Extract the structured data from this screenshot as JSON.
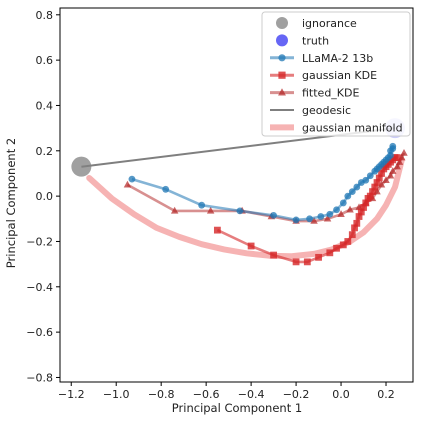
{
  "chart_data": {
    "type": "line",
    "xlabel": "Principal Component 1",
    "ylabel": "Principal Component 2",
    "xlim": [
      -1.25,
      0.32
    ],
    "ylim": [
      -0.82,
      0.83
    ],
    "xticks": [
      -1.2,
      -1.0,
      -0.8,
      -0.6,
      -0.4,
      -0.2,
      0.0,
      0.2
    ],
    "xtick_labels": [
      "−1.2",
      "−1.0",
      "−0.8",
      "−0.6",
      "−0.4",
      "−0.2",
      "0.0",
      "0.2"
    ],
    "yticks": [
      -0.8,
      -0.6,
      -0.4,
      -0.2,
      0.0,
      0.2,
      0.4,
      0.6,
      0.8
    ],
    "ytick_labels": [
      "−0.8",
      "−0.6",
      "−0.4",
      "−0.2",
      "0.0",
      "0.2",
      "0.4",
      "0.6",
      "0.8"
    ],
    "grid": false,
    "legend_placement": "top-right",
    "series": [
      {
        "name": "ignorance",
        "kind": "point",
        "color": "#808080",
        "opacity": 0.75,
        "x": [
          -1.155
        ],
        "y": [
          0.13
        ]
      },
      {
        "name": "truth",
        "kind": "point",
        "color": "#0000ee",
        "opacity": 0.2,
        "x": [
          0.24
        ],
        "y": [
          0.3
        ]
      },
      {
        "name": "gaussian manifold",
        "kind": "curve",
        "color": "#f4a6a6",
        "opacity": 0.85,
        "x": [
          -1.12,
          -1.02,
          -0.92,
          -0.82,
          -0.72,
          -0.62,
          -0.52,
          -0.42,
          -0.32,
          -0.22,
          -0.12,
          -0.04,
          0.04,
          0.1,
          0.16,
          0.2,
          0.24,
          0.27
        ],
        "y": [
          0.08,
          -0.01,
          -0.08,
          -0.14,
          -0.18,
          -0.212,
          -0.235,
          -0.252,
          -0.263,
          -0.265,
          -0.255,
          -0.235,
          -0.2,
          -0.16,
          -0.1,
          -0.04,
          0.04,
          0.16
        ]
      },
      {
        "name": "geodesic",
        "kind": "line",
        "color": "#7f7f7f",
        "opacity": 1,
        "x": [
          -1.155,
          0.24
        ],
        "y": [
          0.13,
          0.3
        ]
      },
      {
        "name": "fitted_KDE",
        "kind": "line-marker",
        "marker": "triangle",
        "color": "#b22222",
        "opacity": 0.5,
        "x": [
          -0.95,
          -0.74,
          -0.58,
          -0.44,
          -0.31,
          -0.2,
          -0.12,
          -0.06,
          0.0,
          0.04,
          0.08,
          0.11,
          0.14,
          0.16,
          0.18,
          0.2,
          0.22,
          0.23,
          0.25,
          0.26,
          0.27,
          0.28
        ],
        "y": [
          0.05,
          -0.065,
          -0.065,
          -0.065,
          -0.09,
          -0.11,
          -0.11,
          -0.1,
          -0.08,
          -0.06,
          -0.05,
          -0.03,
          -0.01,
          0.02,
          0.05,
          0.07,
          0.09,
          0.11,
          0.13,
          0.15,
          0.17,
          0.19
        ]
      },
      {
        "name": "gaussian KDE",
        "kind": "line-marker",
        "marker": "square",
        "color": "#d62728",
        "opacity": 0.6,
        "x": [
          -0.55,
          -0.4,
          -0.3,
          -0.2,
          -0.15,
          -0.1,
          -0.05,
          -0.02,
          0.01,
          0.03,
          0.05,
          0.06,
          0.07,
          0.08,
          0.09,
          0.1,
          0.11,
          0.12,
          0.13,
          0.14,
          0.15,
          0.16,
          0.17,
          0.18,
          0.19,
          0.2,
          0.21,
          0.22,
          0.23,
          0.24,
          0.25
        ],
        "y": [
          -0.15,
          -0.22,
          -0.26,
          -0.29,
          -0.29,
          -0.27,
          -0.25,
          -0.23,
          -0.215,
          -0.2,
          -0.17,
          -0.14,
          -0.12,
          -0.09,
          -0.07,
          -0.05,
          -0.03,
          -0.01,
          0.0,
          0.02,
          0.04,
          0.06,
          0.08,
          0.1,
          0.12,
          0.13,
          0.14,
          0.15,
          0.16,
          0.17,
          0.17
        ]
      },
      {
        "name": "LLaMA-2 13b",
        "kind": "line-marker",
        "marker": "circle",
        "color": "#1f77b4",
        "opacity": 0.55,
        "x": [
          -0.93,
          -0.78,
          -0.62,
          -0.45,
          -0.3,
          -0.2,
          -0.14,
          -0.09,
          -0.05,
          -0.02,
          0.01,
          0.03,
          0.05,
          0.07,
          0.09,
          0.11,
          0.13,
          0.15,
          0.16,
          0.17,
          0.18,
          0.19,
          0.2,
          0.21,
          0.22,
          0.22,
          0.23,
          0.23
        ],
        "y": [
          0.075,
          0.03,
          -0.04,
          -0.065,
          -0.085,
          -0.105,
          -0.1,
          -0.09,
          -0.08,
          -0.06,
          -0.03,
          0.0,
          0.02,
          0.04,
          0.06,
          0.07,
          0.09,
          0.11,
          0.12,
          0.13,
          0.14,
          0.15,
          0.16,
          0.17,
          0.18,
          0.2,
          0.21,
          0.22
        ]
      }
    ],
    "legend": [
      "ignorance",
      "truth",
      "LLaMA-2 13b",
      "gaussian KDE",
      "fitted_KDE",
      "geodesic",
      "gaussian manifold"
    ]
  }
}
